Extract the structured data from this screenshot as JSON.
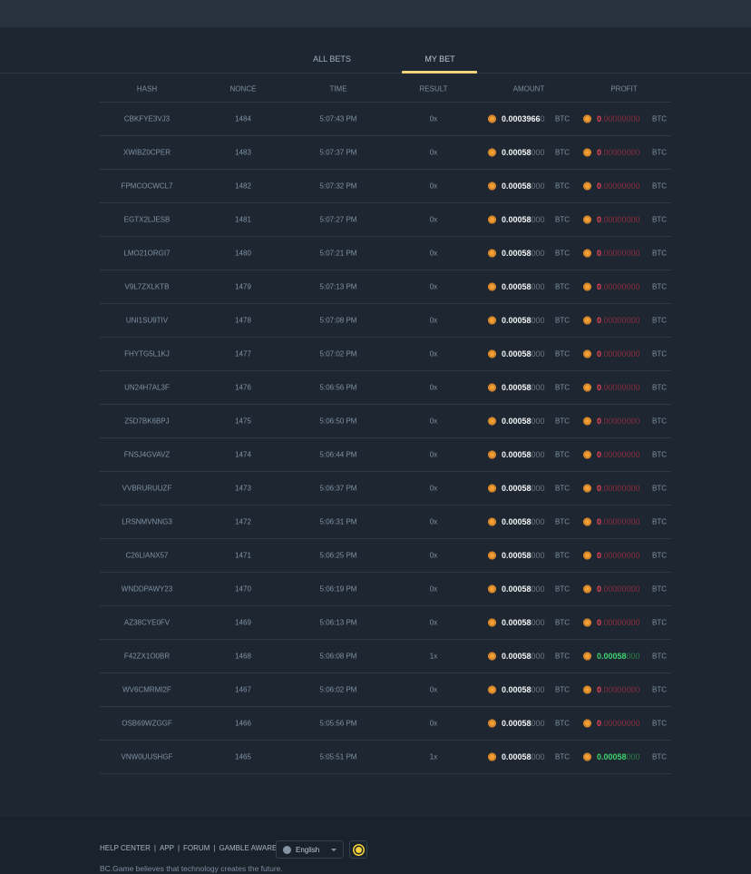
{
  "tabs": [
    {
      "label": "ALL BETS",
      "active": false
    },
    {
      "label": "MY BET",
      "active": true
    }
  ],
  "columns": [
    "HASH",
    "NONCE",
    "TIME",
    "RESULT",
    "AMOUNT",
    "PROFIT"
  ],
  "currency": "BTC",
  "colors": {
    "accent": "#f0d27a",
    "loss": "#e8455a",
    "win": "#3fd26e",
    "coin": "#f0a035"
  },
  "rows": [
    {
      "hash": "CBKFYE3VJ3",
      "nonce": "1484",
      "time": "5:07:43 PM",
      "result": "0x",
      "amount": [
        "0.0003966",
        "0"
      ],
      "profit": [
        "0",
        ".00000000"
      ],
      "win": false
    },
    {
      "hash": "XWIBZ0CPER",
      "nonce": "1483",
      "time": "5:07:37 PM",
      "result": "0x",
      "amount": [
        "0.00058",
        "000"
      ],
      "profit": [
        "0",
        ".00000000"
      ],
      "win": false
    },
    {
      "hash": "FPMCOCWCL7",
      "nonce": "1482",
      "time": "5:07:32 PM",
      "result": "0x",
      "amount": [
        "0.00058",
        "000"
      ],
      "profit": [
        "0",
        ".00000000"
      ],
      "win": false
    },
    {
      "hash": "EGTX2LJESB",
      "nonce": "1481",
      "time": "5:07:27 PM",
      "result": "0x",
      "amount": [
        "0.00058",
        "000"
      ],
      "profit": [
        "0",
        ".00000000"
      ],
      "win": false
    },
    {
      "hash": "LMO21ORGI7",
      "nonce": "1480",
      "time": "5:07:21 PM",
      "result": "0x",
      "amount": [
        "0.00058",
        "000"
      ],
      "profit": [
        "0",
        ".00000000"
      ],
      "win": false
    },
    {
      "hash": "V9L7ZXLKTB",
      "nonce": "1479",
      "time": "5:07:13 PM",
      "result": "0x",
      "amount": [
        "0.00058",
        "000"
      ],
      "profit": [
        "0",
        ".00000000"
      ],
      "win": false
    },
    {
      "hash": "UNI1SU9TIV",
      "nonce": "1478",
      "time": "5:07:08 PM",
      "result": "0x",
      "amount": [
        "0.00058",
        "000"
      ],
      "profit": [
        "0",
        ".00000000"
      ],
      "win": false
    },
    {
      "hash": "FHYTG5L1KJ",
      "nonce": "1477",
      "time": "5:07:02 PM",
      "result": "0x",
      "amount": [
        "0.00058",
        "000"
      ],
      "profit": [
        "0",
        ".00000000"
      ],
      "win": false
    },
    {
      "hash": "UN24H7AL3F",
      "nonce": "1476",
      "time": "5:06:56 PM",
      "result": "0x",
      "amount": [
        "0.00058",
        "000"
      ],
      "profit": [
        "0",
        ".00000000"
      ],
      "win": false
    },
    {
      "hash": "Z5D7BK6BPJ",
      "nonce": "1475",
      "time": "5:06:50 PM",
      "result": "0x",
      "amount": [
        "0.00058",
        "000"
      ],
      "profit": [
        "0",
        ".00000000"
      ],
      "win": false
    },
    {
      "hash": "FNSJ4GVAVZ",
      "nonce": "1474",
      "time": "5:06:44 PM",
      "result": "0x",
      "amount": [
        "0.00058",
        "000"
      ],
      "profit": [
        "0",
        ".00000000"
      ],
      "win": false
    },
    {
      "hash": "VVBRURUUZF",
      "nonce": "1473",
      "time": "5:06:37 PM",
      "result": "0x",
      "amount": [
        "0.00058",
        "000"
      ],
      "profit": [
        "0",
        ".00000000"
      ],
      "win": false
    },
    {
      "hash": "LRSNMVNNG3",
      "nonce": "1472",
      "time": "5:06:31 PM",
      "result": "0x",
      "amount": [
        "0.00058",
        "000"
      ],
      "profit": [
        "0",
        ".00000000"
      ],
      "win": false
    },
    {
      "hash": "C26LIANX57",
      "nonce": "1471",
      "time": "5:06:25 PM",
      "result": "0x",
      "amount": [
        "0.00058",
        "000"
      ],
      "profit": [
        "0",
        ".00000000"
      ],
      "win": false
    },
    {
      "hash": "WNDDPAWY23",
      "nonce": "1470",
      "time": "5:06:19 PM",
      "result": "0x",
      "amount": [
        "0.00058",
        "000"
      ],
      "profit": [
        "0",
        ".00000000"
      ],
      "win": false
    },
    {
      "hash": "AZ38CYE0FV",
      "nonce": "1469",
      "time": "5:06:13 PM",
      "result": "0x",
      "amount": [
        "0.00058",
        "000"
      ],
      "profit": [
        "0",
        ".00000000"
      ],
      "win": false
    },
    {
      "hash": "F42ZX1O0BR",
      "nonce": "1468",
      "time": "5:06:08 PM",
      "result": "1x",
      "amount": [
        "0.00058",
        "000"
      ],
      "profit": [
        "0.00058",
        "000"
      ],
      "win": true
    },
    {
      "hash": "WV6CMRMI2F",
      "nonce": "1467",
      "time": "5:06:02 PM",
      "result": "0x",
      "amount": [
        "0.00058",
        "000"
      ],
      "profit": [
        "0",
        ".00000000"
      ],
      "win": false
    },
    {
      "hash": "OSB69WZGGF",
      "nonce": "1466",
      "time": "5:05:56 PM",
      "result": "0x",
      "amount": [
        "0.00058",
        "000"
      ],
      "profit": [
        "0",
        ".00000000"
      ],
      "win": false
    },
    {
      "hash": "VNW0UUSHGF",
      "nonce": "1465",
      "time": "5:05:51 PM",
      "result": "1x",
      "amount": [
        "0.00058",
        "000"
      ],
      "profit": [
        "0.00058",
        "000"
      ],
      "win": true
    }
  ],
  "footer": {
    "links": [
      "HELP CENTER",
      "APP",
      "FORUM",
      "GAMBLE AWARE"
    ],
    "separator": "|",
    "language": "English",
    "theme_icon": "sun-icon",
    "tagline": "BC.Game believes that technology creates the future."
  }
}
